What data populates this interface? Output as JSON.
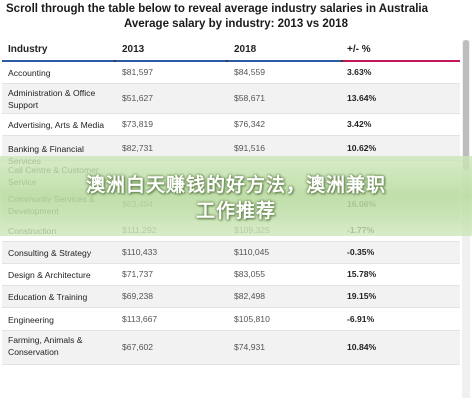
{
  "heading": "Scroll through the table below to reveal average industry salaries in Australia",
  "subheading": "Average salary by industry: 2013 vs 2018",
  "columns": {
    "industry": "Industry",
    "y2013": "2013",
    "y2018": "2018",
    "change": "+/- %"
  },
  "column_colors": {
    "industry": "#2b5aa6",
    "y2013": "#2b5aa6",
    "y2018": "#2b5aa6",
    "change": "#c2185b"
  },
  "rows": [
    {
      "industry": "Accounting",
      "y2013": "$81,597",
      "y2018": "$84,559",
      "change": "3.63%"
    },
    {
      "industry": "Administration & Office Support",
      "y2013": "$51,627",
      "y2018": "$58,671",
      "change": "13.64%"
    },
    {
      "industry": "Advertising, Arts & Media",
      "y2013": "$73,819",
      "y2018": "$76,342",
      "change": "3.42%"
    },
    {
      "industry": "Banking & Financial Services",
      "y2013": "$82,731",
      "y2018": "$91,516",
      "change": "10.62%"
    },
    {
      "industry": "Call Centre & Customer Service",
      "y2013": "",
      "y2018": "",
      "change": ""
    },
    {
      "industry": "Community Services & Development",
      "y2013": "$63,494",
      "y2018": "",
      "change": "16.06%"
    },
    {
      "industry": "Construction",
      "y2013": "$111,292",
      "y2018": "$109,325",
      "change": "-1.77%"
    },
    {
      "industry": "Consulting & Strategy",
      "y2013": "$110,433",
      "y2018": "$110,045",
      "change": "-0.35%"
    },
    {
      "industry": "Design & Architecture",
      "y2013": "$71,737",
      "y2018": "$83,055",
      "change": "15.78%"
    },
    {
      "industry": "Education & Training",
      "y2013": "$69,238",
      "y2018": "$82,498",
      "change": "19.15%"
    },
    {
      "industry": "Engineering",
      "y2013": "$113,667",
      "y2018": "$105,810",
      "change": "-6.91%"
    },
    {
      "industry": "Farming, Animals & Conservation",
      "y2013": "$67,602",
      "y2018": "$74,931",
      "change": "10.84%"
    }
  ],
  "overlay": {
    "line1": "澳洲白天赚钱的好方法，澳洲兼职",
    "line2": "工作推荐"
  }
}
